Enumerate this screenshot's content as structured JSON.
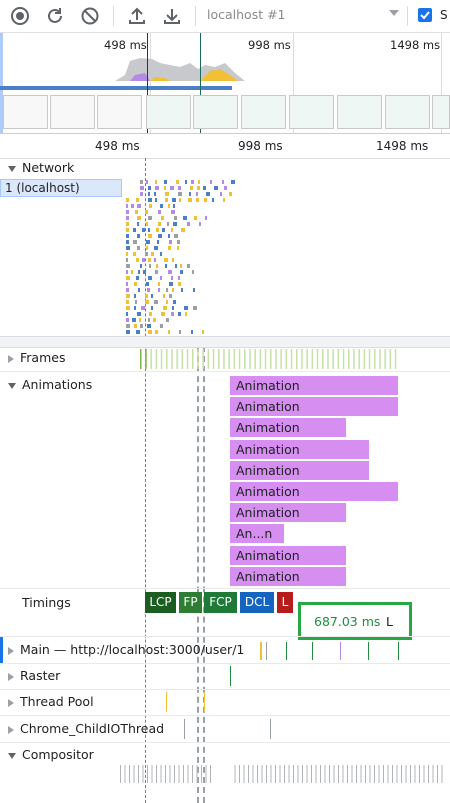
{
  "toolbar": {
    "record_icon": "record-icon",
    "reload_icon": "reload-icon",
    "clear_icon": "clear-icon",
    "upload_icon": "upload-icon",
    "download_icon": "download-icon",
    "url_select_value": "localhost #1",
    "screenshots_label": "S",
    "screenshots_checked": true
  },
  "overview": {
    "ticks": [
      "498 ms",
      "998 ms",
      "1498 ms"
    ]
  },
  "ruler": {
    "ticks": [
      "498 ms",
      "998 ms",
      "1498 ms"
    ]
  },
  "network": {
    "title": "Network",
    "row_label": "1 (localhost)"
  },
  "tracks": {
    "frames": "Frames",
    "animations": "Animations",
    "timings": "Timings",
    "main": "Main — http://localhost:3000/user/1",
    "raster": "Raster",
    "thread_pool": "Thread Pool",
    "chrome_childio": "Chrome_ChildIOThread",
    "compositor": "Compositor"
  },
  "animations": [
    "Animation",
    "Animation",
    "Animation",
    "Animation",
    "Animation",
    "Animation",
    "Animation",
    "An...n",
    "Animation",
    "Animation"
  ],
  "timings": [
    {
      "label": "LCP",
      "color": "#1b5e20"
    },
    {
      "label": "FP",
      "color": "#2e7d32"
    },
    {
      "label": "FCP",
      "color": "#1e7a36"
    },
    {
      "label": "DCL",
      "color": "#1565c0"
    },
    {
      "label": "L",
      "color": "#b71c1c"
    }
  ],
  "tooltip": {
    "value": "687.03 ms",
    "flag": "L"
  },
  "colors": {
    "accent": "#1a73e8",
    "animation": "#d68ff0",
    "tooltip_border": "#27a844"
  }
}
